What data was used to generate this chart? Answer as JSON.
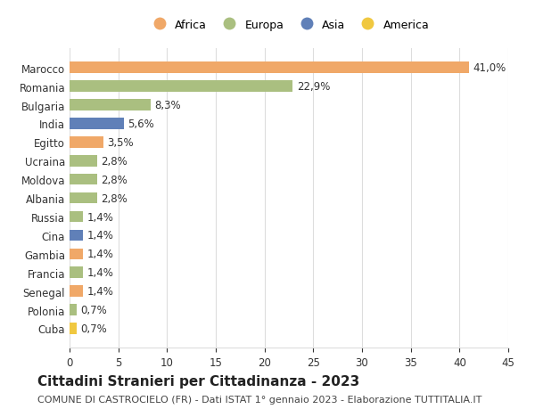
{
  "countries": [
    "Cuba",
    "Polonia",
    "Senegal",
    "Francia",
    "Gambia",
    "Cina",
    "Russia",
    "Albania",
    "Moldova",
    "Ucraina",
    "Egitto",
    "India",
    "Bulgaria",
    "Romania",
    "Marocco"
  ],
  "values": [
    0.7,
    0.7,
    1.4,
    1.4,
    1.4,
    1.4,
    1.4,
    2.8,
    2.8,
    2.8,
    3.5,
    5.6,
    8.3,
    22.9,
    41.0
  ],
  "labels": [
    "0,7%",
    "0,7%",
    "1,4%",
    "1,4%",
    "1,4%",
    "1,4%",
    "1,4%",
    "2,8%",
    "2,8%",
    "2,8%",
    "3,5%",
    "5,6%",
    "8,3%",
    "22,9%",
    "41,0%"
  ],
  "continents": [
    "America",
    "Europa",
    "Africa",
    "Europa",
    "Africa",
    "Asia",
    "Europa",
    "Europa",
    "Europa",
    "Europa",
    "Africa",
    "Asia",
    "Europa",
    "Europa",
    "Africa"
  ],
  "colors": {
    "Africa": "#F0A868",
    "Europa": "#AABF80",
    "Asia": "#6080B8",
    "America": "#F0C840"
  },
  "legend_order": [
    "Africa",
    "Europa",
    "Asia",
    "America"
  ],
  "title": "Cittadini Stranieri per Cittadinanza - 2023",
  "subtitle": "COMUNE DI CASTROCIELO (FR) - Dati ISTAT 1° gennaio 2023 - Elaborazione TUTTITALIA.IT",
  "xlim": [
    0,
    45
  ],
  "xticks": [
    0,
    5,
    10,
    15,
    20,
    25,
    30,
    35,
    40,
    45
  ],
  "background_color": "#ffffff",
  "bar_height": 0.6,
  "grid_color": "#dddddd",
  "label_fontsize": 8.5,
  "title_fontsize": 11,
  "subtitle_fontsize": 8
}
